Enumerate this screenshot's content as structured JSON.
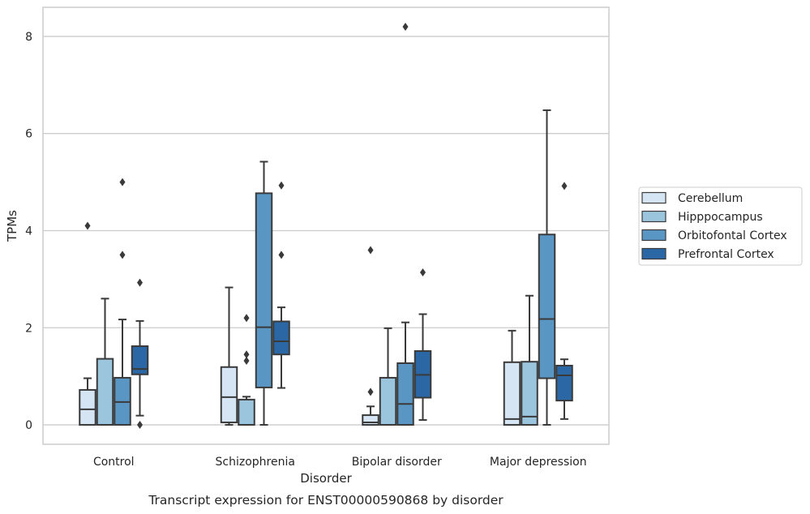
{
  "chart_data": {
    "type": "box",
    "xlabel": "Disorder",
    "ylabel": "TPMs",
    "caption": "Transcript expression for ENST00000590868 by disorder",
    "ylim": [
      -0.4,
      8.6
    ],
    "yticks": [
      0,
      2,
      4,
      6,
      8
    ],
    "grid": "horizontal",
    "legend_position": "right",
    "categories": [
      "Control",
      "Schizophrenia",
      "Bipolar disorder",
      "Major depression"
    ],
    "series": [
      {
        "name": "Cerebellum",
        "color": "#d6e5f3",
        "boxes": [
          {
            "whisker_low": 0,
            "q1": 0,
            "median": 0.32,
            "q3": 0.72,
            "whisker_high": 0.96,
            "outliers": [
              4.1
            ]
          },
          {
            "whisker_low": 0,
            "q1": 0.05,
            "median": 0.57,
            "q3": 1.19,
            "whisker_high": 2.83,
            "outliers": []
          },
          {
            "whisker_low": 0,
            "q1": 0,
            "median": 0.05,
            "q3": 0.2,
            "whisker_high": 0.38,
            "outliers": [
              0.68,
              3.6
            ]
          },
          {
            "whisker_low": 0,
            "q1": 0,
            "median": 0.12,
            "q3": 1.29,
            "whisker_high": 1.94,
            "outliers": []
          }
        ]
      },
      {
        "name": "Hipppocampus",
        "color": "#9bc4dd",
        "boxes": [
          {
            "whisker_low": 0,
            "q1": 0,
            "median": 0,
            "q3": 1.36,
            "whisker_high": 2.6,
            "outliers": []
          },
          {
            "whisker_low": 0,
            "q1": 0,
            "median": 0,
            "q3": 0.52,
            "whisker_high": 0.58,
            "outliers": [
              1.32,
              1.45,
              2.2
            ]
          },
          {
            "whisker_low": 0,
            "q1": 0,
            "median": 0,
            "q3": 0.97,
            "whisker_high": 1.99,
            "outliers": []
          },
          {
            "whisker_low": 0,
            "q1": 0,
            "median": 0.17,
            "q3": 1.3,
            "whisker_high": 2.66,
            "outliers": []
          }
        ]
      },
      {
        "name": "Orbitofontal Cortex",
        "color": "#5996c4",
        "boxes": [
          {
            "whisker_low": 0,
            "q1": 0,
            "median": 0.47,
            "q3": 0.97,
            "whisker_high": 2.17,
            "outliers": [
              3.5,
              5.0
            ]
          },
          {
            "whisker_low": 0,
            "q1": 0.77,
            "median": 2.01,
            "q3": 4.77,
            "whisker_high": 5.42,
            "outliers": []
          },
          {
            "whisker_low": 0,
            "q1": 0,
            "median": 0.43,
            "q3": 1.27,
            "whisker_high": 2.11,
            "outliers": [
              8.2
            ]
          },
          {
            "whisker_low": 0,
            "q1": 0.96,
            "median": 2.18,
            "q3": 3.92,
            "whisker_high": 6.48,
            "outliers": []
          }
        ]
      },
      {
        "name": "Prefrontal Cortex",
        "color": "#2a67a4",
        "boxes": [
          {
            "whisker_low": 0.19,
            "q1": 1.04,
            "median": 1.15,
            "q3": 1.62,
            "whisker_high": 2.14,
            "outliers": [
              0.0,
              2.93
            ]
          },
          {
            "whisker_low": 0.76,
            "q1": 1.45,
            "median": 1.72,
            "q3": 2.13,
            "whisker_high": 2.42,
            "outliers": [
              3.5,
              4.93
            ]
          },
          {
            "whisker_low": 0.1,
            "q1": 0.56,
            "median": 1.03,
            "q3": 1.52,
            "whisker_high": 2.28,
            "outliers": [
              3.14
            ]
          },
          {
            "whisker_low": 0.12,
            "q1": 0.5,
            "median": 1.02,
            "q3": 1.22,
            "whisker_high": 1.35,
            "outliers": [
              4.92
            ]
          }
        ]
      }
    ]
  }
}
